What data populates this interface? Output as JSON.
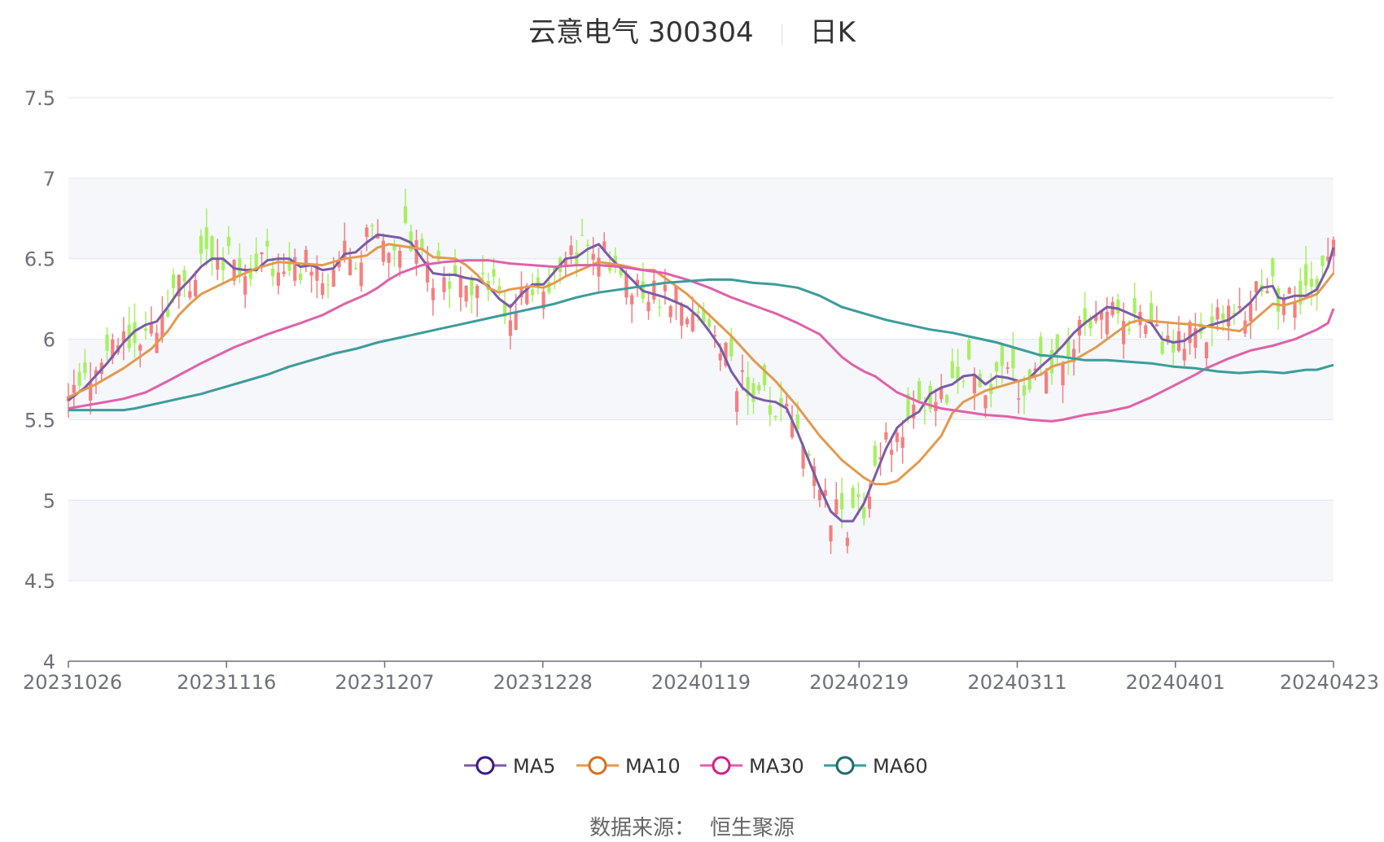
{
  "chart_data": {
    "type": "candlestick",
    "title": "云意电气 300304",
    "period_label": "日K",
    "ylim": [
      4,
      7.5
    ],
    "yticks": [
      "4",
      "4.5",
      "5",
      "5.5",
      "6",
      "6.5",
      "7",
      "7.5"
    ],
    "xticks": [
      "20231026",
      "20231116",
      "20231207",
      "20231228",
      "20240119",
      "20240219",
      "20240311",
      "20240401",
      "20240423"
    ],
    "colors": {
      "up": "#f47f7f",
      "down": "#a6f060",
      "grid": "#e0e6f1",
      "band": "#f5f7fb",
      "axis": "#6e7079"
    },
    "series": [
      {
        "name": "MA5",
        "color": "#7b5ba6",
        "marker": "#3b1a80",
        "values": [
          [
            0,
            5.62
          ],
          [
            3,
            5.7
          ],
          [
            7,
            5.85
          ],
          [
            10,
            5.98
          ],
          [
            12,
            6.05
          ],
          [
            14,
            6.09
          ],
          [
            16,
            6.11
          ],
          [
            18,
            6.2
          ],
          [
            20,
            6.3
          ],
          [
            22,
            6.37
          ],
          [
            24,
            6.45
          ],
          [
            26,
            6.5
          ],
          [
            28,
            6.5
          ],
          [
            30,
            6.44
          ],
          [
            32,
            6.43
          ],
          [
            34,
            6.43
          ],
          [
            36,
            6.49
          ],
          [
            38,
            6.5
          ],
          [
            40,
            6.5
          ],
          [
            42,
            6.45
          ],
          [
            44,
            6.46
          ],
          [
            46,
            6.43
          ],
          [
            48,
            6.44
          ],
          [
            50,
            6.53
          ],
          [
            52,
            6.54
          ],
          [
            54,
            6.6
          ],
          [
            56,
            6.65
          ],
          [
            58,
            6.64
          ],
          [
            60,
            6.63
          ],
          [
            62,
            6.6
          ],
          [
            64,
            6.5
          ],
          [
            66,
            6.41
          ],
          [
            68,
            6.4
          ],
          [
            70,
            6.4
          ],
          [
            72,
            6.38
          ],
          [
            74,
            6.37
          ],
          [
            76,
            6.33
          ],
          [
            78,
            6.25
          ],
          [
            80,
            6.2
          ],
          [
            82,
            6.28
          ],
          [
            84,
            6.34
          ],
          [
            86,
            6.34
          ],
          [
            88,
            6.42
          ],
          [
            90,
            6.5
          ],
          [
            92,
            6.51
          ],
          [
            94,
            6.56
          ],
          [
            96,
            6.59
          ],
          [
            98,
            6.51
          ],
          [
            100,
            6.44
          ],
          [
            102,
            6.37
          ],
          [
            104,
            6.3
          ],
          [
            106,
            6.28
          ],
          [
            108,
            6.26
          ],
          [
            110,
            6.23
          ],
          [
            112,
            6.2
          ],
          [
            114,
            6.14
          ],
          [
            116,
            6.05
          ],
          [
            118,
            5.95
          ],
          [
            120,
            5.8
          ],
          [
            122,
            5.7
          ],
          [
            124,
            5.64
          ],
          [
            126,
            5.62
          ],
          [
            128,
            5.61
          ],
          [
            130,
            5.57
          ],
          [
            132,
            5.42
          ],
          [
            134,
            5.25
          ],
          [
            136,
            5.08
          ],
          [
            138,
            4.93
          ],
          [
            140,
            4.87
          ],
          [
            142,
            4.87
          ],
          [
            144,
            4.98
          ],
          [
            146,
            5.15
          ],
          [
            148,
            5.32
          ],
          [
            150,
            5.45
          ],
          [
            152,
            5.51
          ],
          [
            154,
            5.55
          ],
          [
            156,
            5.66
          ],
          [
            158,
            5.7
          ],
          [
            160,
            5.72
          ],
          [
            162,
            5.77
          ],
          [
            164,
            5.78
          ],
          [
            166,
            5.72
          ],
          [
            168,
            5.77
          ],
          [
            170,
            5.76
          ],
          [
            172,
            5.74
          ],
          [
            174,
            5.76
          ],
          [
            176,
            5.83
          ],
          [
            178,
            5.89
          ],
          [
            180,
            5.96
          ],
          [
            182,
            6.04
          ],
          [
            184,
            6.1
          ],
          [
            186,
            6.15
          ],
          [
            188,
            6.2
          ],
          [
            190,
            6.19
          ],
          [
            192,
            6.16
          ],
          [
            194,
            6.13
          ],
          [
            196,
            6.1
          ],
          [
            198,
            6.0
          ],
          [
            200,
            5.98
          ],
          [
            202,
            5.99
          ],
          [
            204,
            6.04
          ],
          [
            206,
            6.08
          ],
          [
            208,
            6.1
          ],
          [
            210,
            6.12
          ],
          [
            212,
            6.17
          ],
          [
            214,
            6.23
          ],
          [
            216,
            6.32
          ],
          [
            218,
            6.33
          ],
          [
            219,
            6.26
          ],
          [
            220,
            6.25
          ],
          [
            222,
            6.27
          ],
          [
            224,
            6.27
          ],
          [
            226,
            6.31
          ],
          [
            228,
            6.45
          ],
          [
            229,
            6.57
          ]
        ]
      },
      {
        "name": "MA10",
        "color": "#e39a4f",
        "marker": "#d46f1f",
        "values": [
          [
            0,
            5.64
          ],
          [
            5,
            5.72
          ],
          [
            10,
            5.82
          ],
          [
            15,
            5.94
          ],
          [
            18,
            6.05
          ],
          [
            20,
            6.15
          ],
          [
            22,
            6.22
          ],
          [
            24,
            6.28
          ],
          [
            27,
            6.33
          ],
          [
            30,
            6.38
          ],
          [
            34,
            6.44
          ],
          [
            38,
            6.48
          ],
          [
            42,
            6.47
          ],
          [
            46,
            6.46
          ],
          [
            50,
            6.5
          ],
          [
            54,
            6.52
          ],
          [
            56,
            6.57
          ],
          [
            58,
            6.59
          ],
          [
            62,
            6.57
          ],
          [
            64,
            6.56
          ],
          [
            66,
            6.51
          ],
          [
            70,
            6.5
          ],
          [
            72,
            6.46
          ],
          [
            74,
            6.4
          ],
          [
            76,
            6.32
          ],
          [
            78,
            6.29
          ],
          [
            80,
            6.31
          ],
          [
            84,
            6.33
          ],
          [
            86,
            6.32
          ],
          [
            88,
            6.35
          ],
          [
            90,
            6.39
          ],
          [
            94,
            6.45
          ],
          [
            96,
            6.48
          ],
          [
            100,
            6.46
          ],
          [
            104,
            6.43
          ],
          [
            106,
            6.43
          ],
          [
            108,
            6.38
          ],
          [
            112,
            6.28
          ],
          [
            116,
            6.15
          ],
          [
            120,
            6.02
          ],
          [
            124,
            5.87
          ],
          [
            128,
            5.74
          ],
          [
            132,
            5.58
          ],
          [
            136,
            5.4
          ],
          [
            140,
            5.25
          ],
          [
            144,
            5.14
          ],
          [
            146,
            5.1
          ],
          [
            148,
            5.1
          ],
          [
            150,
            5.12
          ],
          [
            154,
            5.24
          ],
          [
            158,
            5.4
          ],
          [
            160,
            5.54
          ],
          [
            162,
            5.61
          ],
          [
            166,
            5.68
          ],
          [
            170,
            5.72
          ],
          [
            174,
            5.76
          ],
          [
            176,
            5.78
          ],
          [
            178,
            5.83
          ],
          [
            182,
            5.87
          ],
          [
            186,
            5.95
          ],
          [
            190,
            6.05
          ],
          [
            192,
            6.1
          ],
          [
            194,
            6.12
          ],
          [
            200,
            6.1
          ],
          [
            204,
            6.09
          ],
          [
            206,
            6.08
          ],
          [
            208,
            6.07
          ],
          [
            212,
            6.05
          ],
          [
            214,
            6.1
          ],
          [
            218,
            6.22
          ],
          [
            220,
            6.21
          ],
          [
            222,
            6.23
          ],
          [
            226,
            6.28
          ],
          [
            229,
            6.41
          ]
        ]
      },
      {
        "name": "MA30",
        "color": "#e061a8",
        "marker": "#d31f86",
        "values": [
          [
            0,
            5.57
          ],
          [
            5,
            5.6
          ],
          [
            10,
            5.63
          ],
          [
            14,
            5.67
          ],
          [
            18,
            5.74
          ],
          [
            24,
            5.85
          ],
          [
            30,
            5.95
          ],
          [
            36,
            6.03
          ],
          [
            42,
            6.1
          ],
          [
            46,
            6.15
          ],
          [
            50,
            6.22
          ],
          [
            54,
            6.28
          ],
          [
            56,
            6.32
          ],
          [
            58,
            6.37
          ],
          [
            60,
            6.41
          ],
          [
            64,
            6.46
          ],
          [
            68,
            6.48
          ],
          [
            72,
            6.49
          ],
          [
            76,
            6.49
          ],
          [
            80,
            6.47
          ],
          [
            84,
            6.46
          ],
          [
            88,
            6.45
          ],
          [
            92,
            6.46
          ],
          [
            96,
            6.46
          ],
          [
            100,
            6.45
          ],
          [
            104,
            6.43
          ],
          [
            108,
            6.41
          ],
          [
            112,
            6.37
          ],
          [
            116,
            6.32
          ],
          [
            120,
            6.26
          ],
          [
            124,
            6.21
          ],
          [
            128,
            6.16
          ],
          [
            132,
            6.1
          ],
          [
            136,
            6.03
          ],
          [
            138,
            5.96
          ],
          [
            140,
            5.89
          ],
          [
            142,
            5.84
          ],
          [
            144,
            5.8
          ],
          [
            146,
            5.77
          ],
          [
            148,
            5.72
          ],
          [
            150,
            5.67
          ],
          [
            154,
            5.61
          ],
          [
            158,
            5.57
          ],
          [
            162,
            5.55
          ],
          [
            166,
            5.53
          ],
          [
            170,
            5.52
          ],
          [
            174,
            5.5
          ],
          [
            178,
            5.49
          ],
          [
            180,
            5.5
          ],
          [
            184,
            5.53
          ],
          [
            188,
            5.55
          ],
          [
            192,
            5.58
          ],
          [
            196,
            5.64
          ],
          [
            200,
            5.71
          ],
          [
            204,
            5.78
          ],
          [
            206,
            5.82
          ],
          [
            210,
            5.88
          ],
          [
            214,
            5.93
          ],
          [
            218,
            5.96
          ],
          [
            222,
            6.0
          ],
          [
            224,
            6.03
          ],
          [
            226,
            6.06
          ],
          [
            228,
            6.1
          ],
          [
            229,
            6.19
          ]
        ]
      },
      {
        "name": "MA60",
        "color": "#3c9c9a",
        "marker": "#1e6b6a",
        "values": [
          [
            0,
            5.56
          ],
          [
            5,
            5.56
          ],
          [
            10,
            5.56
          ],
          [
            12,
            5.57
          ],
          [
            16,
            5.6
          ],
          [
            20,
            5.63
          ],
          [
            24,
            5.66
          ],
          [
            28,
            5.7
          ],
          [
            32,
            5.74
          ],
          [
            36,
            5.78
          ],
          [
            40,
            5.83
          ],
          [
            44,
            5.87
          ],
          [
            48,
            5.91
          ],
          [
            52,
            5.94
          ],
          [
            56,
            5.98
          ],
          [
            60,
            6.01
          ],
          [
            64,
            6.04
          ],
          [
            68,
            6.07
          ],
          [
            72,
            6.1
          ],
          [
            76,
            6.13
          ],
          [
            80,
            6.16
          ],
          [
            84,
            6.19
          ],
          [
            88,
            6.22
          ],
          [
            92,
            6.26
          ],
          [
            96,
            6.29
          ],
          [
            100,
            6.31
          ],
          [
            104,
            6.33
          ],
          [
            108,
            6.35
          ],
          [
            112,
            6.36
          ],
          [
            116,
            6.37
          ],
          [
            120,
            6.37
          ],
          [
            124,
            6.35
          ],
          [
            128,
            6.34
          ],
          [
            132,
            6.32
          ],
          [
            136,
            6.27
          ],
          [
            140,
            6.2
          ],
          [
            144,
            6.16
          ],
          [
            148,
            6.12
          ],
          [
            152,
            6.09
          ],
          [
            156,
            6.06
          ],
          [
            160,
            6.04
          ],
          [
            164,
            6.01
          ],
          [
            168,
            5.98
          ],
          [
            172,
            5.94
          ],
          [
            176,
            5.9
          ],
          [
            180,
            5.89
          ],
          [
            184,
            5.87
          ],
          [
            188,
            5.87
          ],
          [
            192,
            5.86
          ],
          [
            196,
            5.85
          ],
          [
            200,
            5.83
          ],
          [
            204,
            5.82
          ],
          [
            208,
            5.8
          ],
          [
            212,
            5.79
          ],
          [
            216,
            5.8
          ],
          [
            220,
            5.79
          ],
          [
            222,
            5.8
          ],
          [
            224,
            5.81
          ],
          [
            226,
            5.81
          ],
          [
            229,
            5.84
          ]
        ]
      }
    ]
  },
  "source": {
    "label": "数据来源：",
    "value": "恒生聚源"
  }
}
